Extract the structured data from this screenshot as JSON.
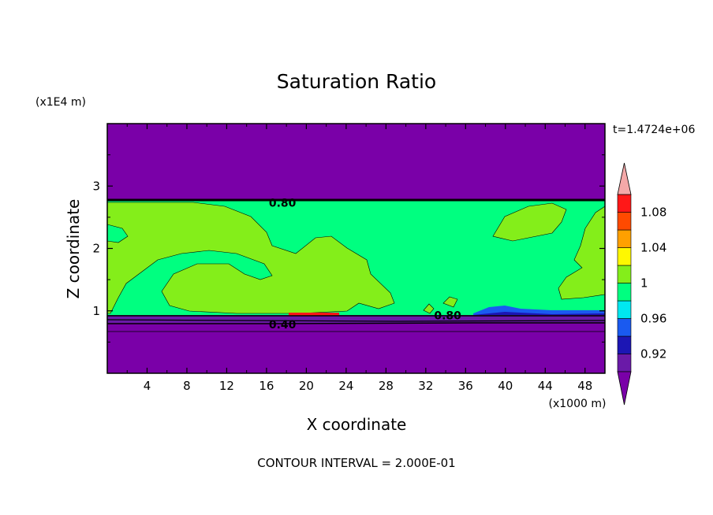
{
  "chart_data": {
    "type": "heatmap",
    "title": "Saturation Ratio",
    "xlabel": "X coordinate",
    "ylabel": "Z coordinate",
    "x_unit": "(x1000 m)",
    "y_unit": "(x1E4 m)",
    "time_label": "t=1.4724e+06",
    "footer": "CONTOUR INTERVAL = 2.000E-01",
    "xlim": [
      0,
      50
    ],
    "ylim": [
      0,
      4
    ],
    "x_ticks": [
      "4",
      "8",
      "12",
      "16",
      "20",
      "24",
      "28",
      "32",
      "36",
      "40",
      "44",
      "48"
    ],
    "y_ticks": [
      "1",
      "2",
      "3"
    ],
    "colorbar": {
      "labels": [
        "0.92",
        "0.96",
        "1",
        "1.04",
        "1.08"
      ],
      "levels": [
        0.9,
        0.92,
        0.94,
        0.96,
        0.98,
        1.0,
        1.02,
        1.04,
        1.06,
        1.08,
        1.1
      ],
      "colors": [
        "#6a1aa8",
        "#1c16b4",
        "#1a5af0",
        "#00e8f0",
        "#00ff80",
        "#84ee1a",
        "#fff800",
        "#ffa000",
        "#ff4a00",
        "#ff1818"
      ],
      "under_color": "#7a00a8",
      "over_color": "#f4a8a8"
    },
    "contour_labels": [
      {
        "text": "0.80",
        "x": 17.6,
        "z": 2.73
      },
      {
        "text": "0.40",
        "x": 17.6,
        "z": 0.78
      },
      {
        "text": "0.80",
        "x": 34.2,
        "z": 0.93
      }
    ],
    "regions": {
      "upper_dry_layer_below": 2.75,
      "moist_layer_bottom": 0.95,
      "background_color": "#7a00a8",
      "moist_color": "#00ff80",
      "supersaturated_color": "#84ee1a"
    }
  }
}
